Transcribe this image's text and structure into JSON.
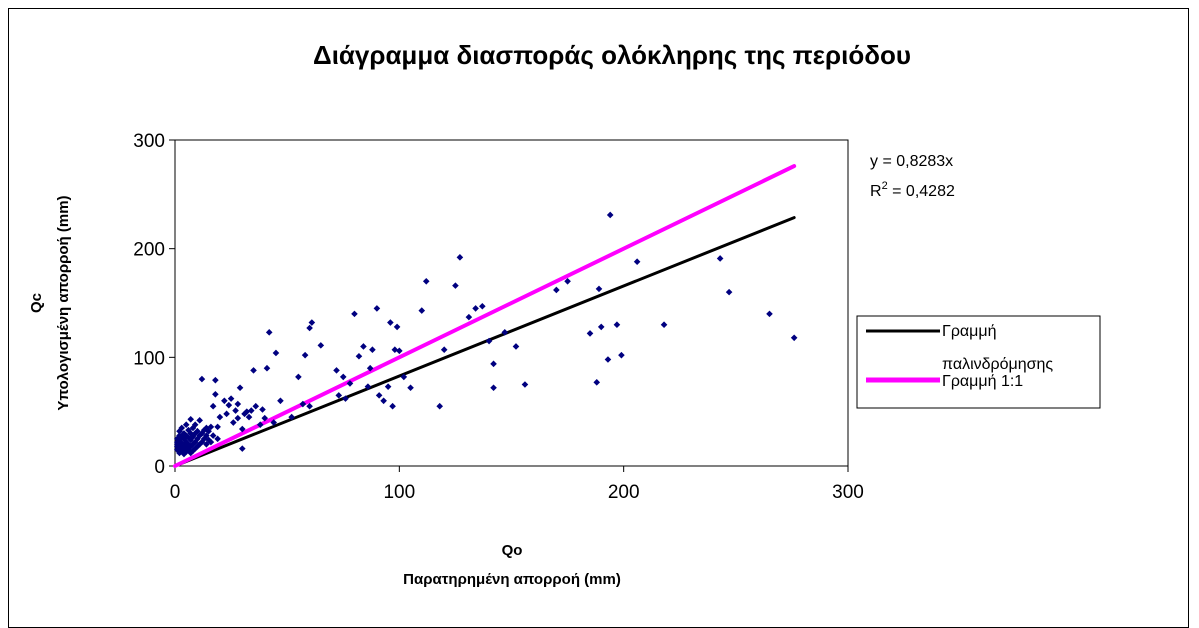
{
  "chart_data": {
    "type": "scatter",
    "title": "Διάγραμμα διασποράς ολόκληρης της  περιόδου",
    "xlabel_line1": "Qo",
    "xlabel_line2": "Παρατηρημένη απορροή (mm)",
    "ylabel_line1": "Qc",
    "ylabel_line2": "Υπολογισμένη απορροή (mm)",
    "xlim": [
      0,
      300
    ],
    "ylim": [
      0,
      300
    ],
    "xticks": [
      0,
      100,
      200,
      300
    ],
    "yticks": [
      0,
      100,
      200,
      300
    ],
    "grid": false,
    "legend_position": "right",
    "equation": "y = 0,8283x",
    "r2_prefix": "R",
    "r2_sup": "2",
    "r2_value": " = 0,4282",
    "series": [
      {
        "kind": "points",
        "color": "#000080",
        "points": [
          [
            1,
            15
          ],
          [
            1,
            18
          ],
          [
            1,
            20
          ],
          [
            1,
            22
          ],
          [
            1,
            25
          ],
          [
            2,
            12
          ],
          [
            2,
            16
          ],
          [
            2,
            19
          ],
          [
            2,
            24
          ],
          [
            2,
            28
          ],
          [
            2,
            32
          ],
          [
            3,
            14
          ],
          [
            3,
            18
          ],
          [
            3,
            21
          ],
          [
            3,
            27
          ],
          [
            3,
            35
          ],
          [
            4,
            11
          ],
          [
            4,
            16
          ],
          [
            4,
            20
          ],
          [
            4,
            25
          ],
          [
            4,
            30
          ],
          [
            5,
            13
          ],
          [
            5,
            18
          ],
          [
            5,
            22
          ],
          [
            5,
            28
          ],
          [
            5,
            38
          ],
          [
            6,
            15
          ],
          [
            6,
            20
          ],
          [
            6,
            26
          ],
          [
            6,
            33
          ],
          [
            7,
            12
          ],
          [
            7,
            18
          ],
          [
            7,
            24
          ],
          [
            7,
            30
          ],
          [
            7,
            43
          ],
          [
            8,
            14
          ],
          [
            8,
            20
          ],
          [
            8,
            27
          ],
          [
            8,
            35
          ],
          [
            9,
            16
          ],
          [
            9,
            22
          ],
          [
            9,
            30
          ],
          [
            9,
            38
          ],
          [
            10,
            18
          ],
          [
            10,
            25
          ],
          [
            10,
            32
          ],
          [
            11,
            20
          ],
          [
            11,
            28
          ],
          [
            11,
            42
          ],
          [
            12,
            22
          ],
          [
            12,
            30
          ],
          [
            12,
            80
          ],
          [
            13,
            25
          ],
          [
            13,
            33
          ],
          [
            14,
            20
          ],
          [
            14,
            28
          ],
          [
            14,
            35
          ],
          [
            15,
            24
          ],
          [
            15,
            32
          ],
          [
            16,
            22
          ],
          [
            16,
            36
          ],
          [
            17,
            28
          ],
          [
            17,
            55
          ],
          [
            18,
            66
          ],
          [
            18,
            79
          ],
          [
            19,
            25
          ],
          [
            19,
            36
          ],
          [
            20,
            45
          ],
          [
            22,
            60
          ],
          [
            23,
            48
          ],
          [
            24,
            56
          ],
          [
            25,
            62
          ],
          [
            26,
            40
          ],
          [
            27,
            51
          ],
          [
            28,
            44
          ],
          [
            28,
            57
          ],
          [
            29,
            72
          ],
          [
            30,
            34
          ],
          [
            30,
            16
          ],
          [
            31,
            48
          ],
          [
            32,
            50
          ],
          [
            33,
            45
          ],
          [
            34,
            51
          ],
          [
            35,
            88
          ],
          [
            36,
            55
          ],
          [
            38,
            38
          ],
          [
            39,
            52
          ],
          [
            40,
            44
          ],
          [
            41,
            90
          ],
          [
            42,
            123
          ],
          [
            44,
            40
          ],
          [
            45,
            104
          ],
          [
            47,
            60
          ],
          [
            52,
            45
          ],
          [
            55,
            82
          ],
          [
            57,
            57
          ],
          [
            58,
            102
          ],
          [
            60,
            55
          ],
          [
            60,
            127
          ],
          [
            61,
            132
          ],
          [
            65,
            111
          ],
          [
            72,
            88
          ],
          [
            73,
            65
          ],
          [
            75,
            82
          ],
          [
            76,
            62
          ],
          [
            78,
            76
          ],
          [
            80,
            140
          ],
          [
            82,
            101
          ],
          [
            84,
            110
          ],
          [
            86,
            73
          ],
          [
            87,
            90
          ],
          [
            88,
            107
          ],
          [
            90,
            145
          ],
          [
            91,
            65
          ],
          [
            93,
            60
          ],
          [
            95,
            73
          ],
          [
            96,
            132
          ],
          [
            97,
            55
          ],
          [
            98,
            107
          ],
          [
            99,
            128
          ],
          [
            100,
            106
          ],
          [
            102,
            82
          ],
          [
            105,
            72
          ],
          [
            110,
            143
          ],
          [
            112,
            170
          ],
          [
            118,
            55
          ],
          [
            120,
            107
          ],
          [
            125,
            166
          ],
          [
            127,
            192
          ],
          [
            131,
            137
          ],
          [
            134,
            145
          ],
          [
            137,
            147
          ],
          [
            140,
            115
          ],
          [
            142,
            72
          ],
          [
            142,
            94
          ],
          [
            147,
            123
          ],
          [
            152,
            110
          ],
          [
            156,
            75
          ],
          [
            170,
            162
          ],
          [
            175,
            170
          ],
          [
            185,
            122
          ],
          [
            188,
            77
          ],
          [
            189,
            163
          ],
          [
            190,
            128
          ],
          [
            193,
            98
          ],
          [
            194,
            231
          ],
          [
            197,
            130
          ],
          [
            199,
            102
          ],
          [
            206,
            188
          ],
          [
            218,
            130
          ],
          [
            243,
            191
          ],
          [
            247,
            160
          ],
          [
            265,
            140
          ],
          [
            276,
            118
          ]
        ]
      },
      {
        "kind": "line",
        "name": "Γραμμή παλινδρόμησης",
        "legend_line1": "Γραμμή",
        "legend_line2": "παλινδρόμησης",
        "color": "#000000",
        "x": [
          0,
          276
        ],
        "y": [
          0,
          228.6
        ]
      },
      {
        "kind": "line",
        "name": "Γραμμή 1:1",
        "color": "#ff00ff",
        "x": [
          0,
          276
        ],
        "y": [
          0,
          276
        ]
      }
    ]
  }
}
